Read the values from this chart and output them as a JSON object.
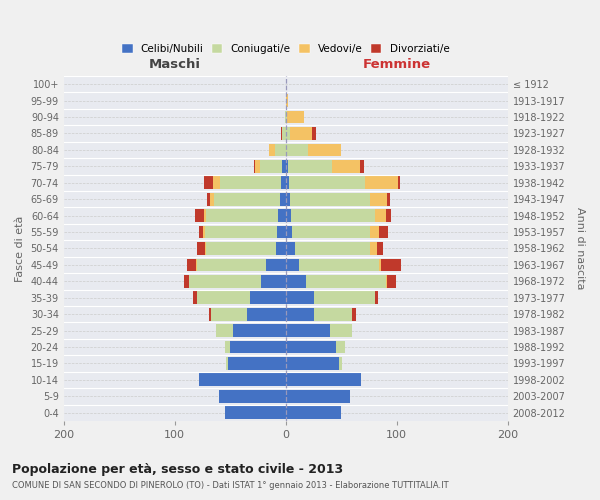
{
  "age_groups": [
    "0-4",
    "5-9",
    "10-14",
    "15-19",
    "20-24",
    "25-29",
    "30-34",
    "35-39",
    "40-44",
    "45-49",
    "50-54",
    "55-59",
    "60-64",
    "65-69",
    "70-74",
    "75-79",
    "80-84",
    "85-89",
    "90-94",
    "95-99",
    "100+"
  ],
  "birth_years": [
    "2008-2012",
    "2003-2007",
    "1998-2002",
    "1993-1997",
    "1988-1992",
    "1983-1987",
    "1978-1982",
    "1973-1977",
    "1968-1972",
    "1963-1967",
    "1958-1962",
    "1953-1957",
    "1948-1952",
    "1943-1947",
    "1938-1942",
    "1933-1937",
    "1928-1932",
    "1923-1927",
    "1918-1922",
    "1913-1917",
    "≤ 1912"
  ],
  "maschi": {
    "celibi": [
      55,
      60,
      78,
      52,
      50,
      48,
      35,
      32,
      22,
      18,
      9,
      8,
      7,
      5,
      4,
      3,
      0,
      0,
      0,
      0,
      0
    ],
    "coniugati": [
      0,
      0,
      0,
      2,
      5,
      15,
      32,
      48,
      65,
      62,
      63,
      65,
      65,
      60,
      55,
      20,
      10,
      3,
      1,
      0,
      0
    ],
    "vedovi": [
      0,
      0,
      0,
      0,
      0,
      0,
      0,
      0,
      0,
      1,
      1,
      2,
      2,
      3,
      7,
      5,
      5,
      0,
      0,
      0,
      0
    ],
    "divorziati": [
      0,
      0,
      0,
      0,
      0,
      0,
      2,
      4,
      5,
      8,
      7,
      3,
      8,
      3,
      8,
      1,
      0,
      1,
      0,
      0,
      0
    ]
  },
  "femmine": {
    "nubili": [
      50,
      58,
      68,
      48,
      45,
      40,
      25,
      25,
      18,
      12,
      8,
      6,
      5,
      4,
      3,
      2,
      0,
      0,
      0,
      0,
      0
    ],
    "coniugate": [
      0,
      0,
      0,
      3,
      8,
      20,
      35,
      55,
      72,
      72,
      68,
      70,
      75,
      72,
      68,
      40,
      20,
      4,
      1,
      0,
      0
    ],
    "vedove": [
      0,
      0,
      0,
      0,
      0,
      0,
      0,
      0,
      1,
      2,
      6,
      8,
      10,
      15,
      30,
      25,
      30,
      20,
      15,
      2,
      0
    ],
    "divorziate": [
      0,
      0,
      0,
      0,
      0,
      0,
      3,
      3,
      8,
      18,
      6,
      8,
      5,
      3,
      2,
      3,
      0,
      3,
      0,
      0,
      0
    ]
  },
  "colors": {
    "celibi": "#4472C4",
    "coniugati": "#C5D9A0",
    "vedovi": "#F4C264",
    "divorziati": "#C0392B"
  },
  "title": "Popolazione per età, sesso e stato civile - 2013",
  "subtitle": "COMUNE DI SAN SECONDO DI PINEROLO (TO) - Dati ISTAT 1° gennaio 2013 - Elaborazione TUTTITALIA.IT",
  "xlabel_left": "Maschi",
  "xlabel_right": "Femmine",
  "ylabel_left": "Fasce di età",
  "ylabel_right": "Anni di nascita",
  "xlim": 200,
  "background_color": "#f0f0f0",
  "plot_bg_color": "#e8eaf0",
  "grid_color": "#ffffff",
  "legend_labels": [
    "Celibi/Nubili",
    "Coniugati/e",
    "Vedovi/e",
    "Divorziati/e"
  ]
}
